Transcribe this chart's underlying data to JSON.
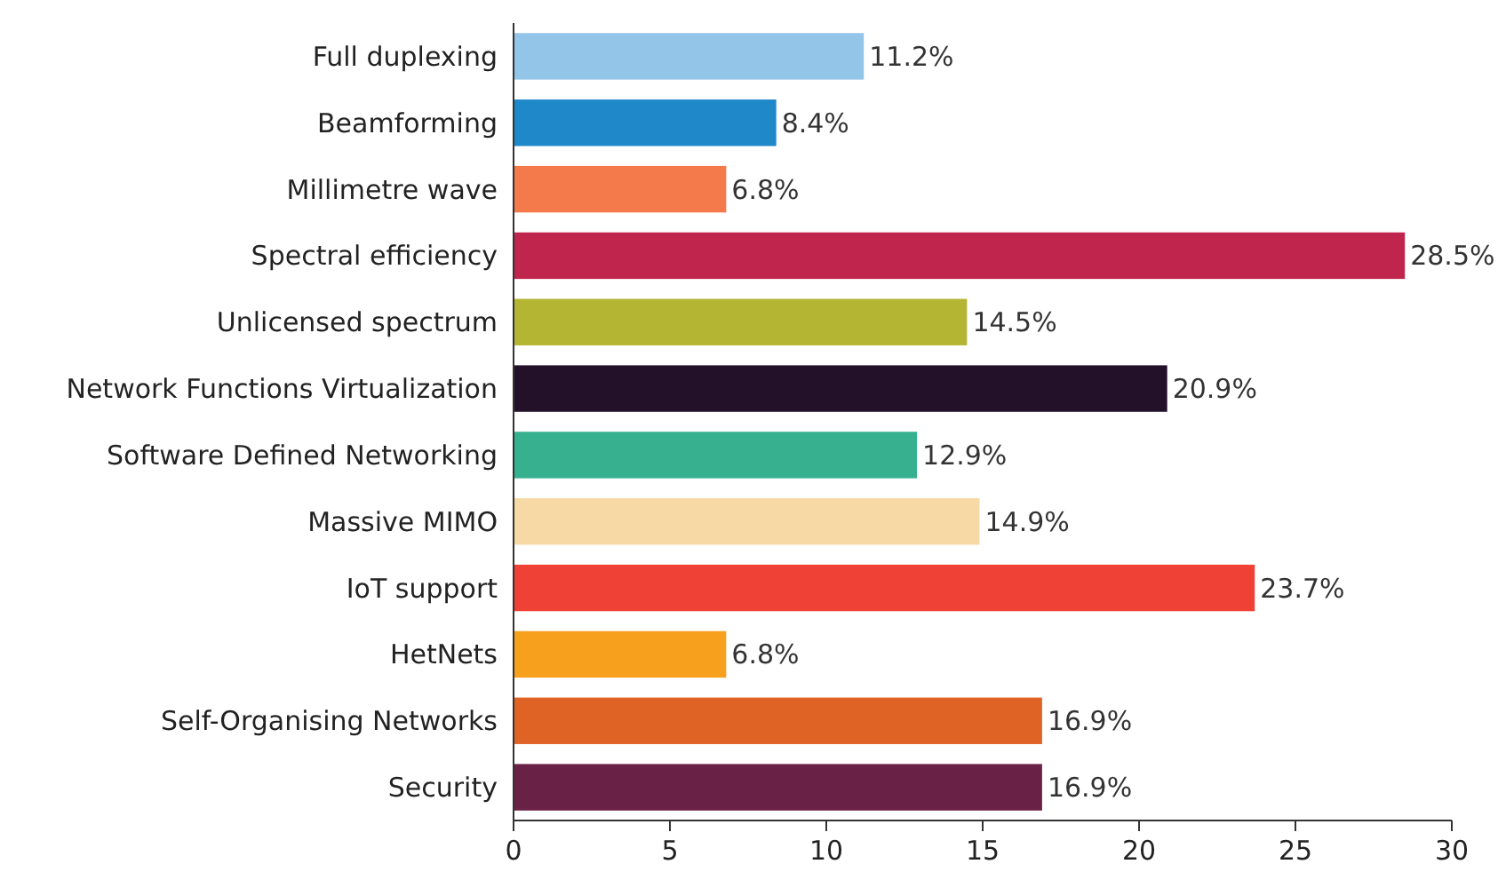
{
  "chart_data": {
    "type": "bar",
    "orientation": "horizontal",
    "categories": [
      "Full duplexing",
      "Beamforming",
      "Millimetre wave",
      "Spectral efficiency",
      "Unlicensed spectrum",
      "Network Functions Virtualization",
      "Software Defined Networking",
      "Massive MIMO",
      "IoT support",
      "HetNets",
      "Self-Organising Networks",
      "Security"
    ],
    "values": [
      11.2,
      8.4,
      6.8,
      28.5,
      14.5,
      20.9,
      12.9,
      14.9,
      23.7,
      6.8,
      16.9,
      16.9
    ],
    "colors": [
      "#92c5e8",
      "#1e88c8",
      "#f47a4c",
      "#c0254e",
      "#b5b534",
      "#23112a",
      "#36b08e",
      "#f7d9a5",
      "#ef4136",
      "#f7a01e",
      "#e06326",
      "#6a2146"
    ],
    "value_labels": [
      "11.2%",
      "8.4%",
      "6.8%",
      "28.5%",
      "14.5%",
      "20.9%",
      "12.9%",
      "14.9%",
      "23.7%",
      "6.8%",
      "16.9%",
      "16.9%"
    ],
    "xlim": [
      0,
      30
    ],
    "xticks": [
      0,
      5,
      10,
      15,
      20,
      25,
      30
    ],
    "grid": false
  }
}
